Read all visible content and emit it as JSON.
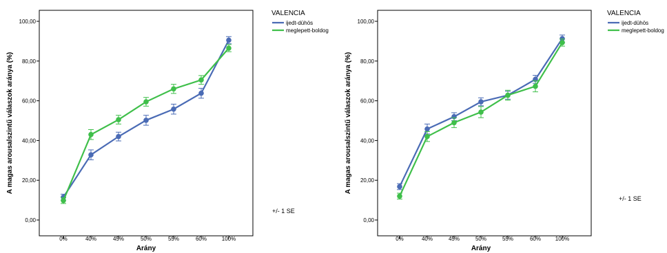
{
  "chart_data": [
    {
      "type": "line",
      "categories": [
        "0%",
        "40%",
        "45%",
        "50%",
        "55%",
        "60%",
        "100%"
      ],
      "ylabel": "A magas arousalszintű válaszok aránya (%)",
      "xlabel": "Arány",
      "ylim": [
        0,
        100
      ],
      "yticks": [
        "0,00",
        "20,00",
        "40,00",
        "60,00",
        "80,00",
        "100,00"
      ],
      "legend_title": "VALENCIA",
      "error_note": "+/- 1 SE",
      "series": [
        {
          "name": "ijedt-dühös",
          "color": "#4a6bb5",
          "values": [
            11.5,
            32.8,
            42.0,
            50.2,
            55.8,
            63.8,
            90.5
          ],
          "se": [
            1.5,
            2.5,
            2.2,
            2.5,
            2.5,
            2.5,
            1.8
          ]
        },
        {
          "name": "meglepett-boldog",
          "color": "#3fbf4a",
          "values": [
            9.8,
            43.0,
            50.5,
            59.5,
            66.0,
            70.5,
            86.5
          ],
          "se": [
            1.5,
            2.5,
            2.2,
            2.2,
            2.3,
            2.2,
            1.8
          ]
        }
      ]
    },
    {
      "type": "line",
      "categories": [
        "0%",
        "40%",
        "45%",
        "50%",
        "55%",
        "60%",
        "100%"
      ],
      "ylabel": "A magas arousalszintű válaszok aránya (%)",
      "xlabel": "Arány",
      "ylim": [
        0,
        100
      ],
      "yticks": [
        "0,00",
        "20,00",
        "40,00",
        "60,00",
        "80,00",
        "100,00"
      ],
      "legend_title": "VALENCIA",
      "error_note": "+/- 1 SE",
      "series": [
        {
          "name": "ijedt-dühös",
          "color": "#4a6bb5",
          "values": [
            16.8,
            45.8,
            52.0,
            59.5,
            62.8,
            70.8,
            91.3
          ],
          "se": [
            1.5,
            2.5,
            2.0,
            2.0,
            2.0,
            2.0,
            1.8
          ]
        },
        {
          "name": "meglepett-boldog",
          "color": "#3fbf4a",
          "values": [
            12.0,
            42.0,
            49.0,
            54.3,
            62.8,
            67.3,
            89.3
          ],
          "se": [
            1.5,
            2.5,
            2.5,
            2.8,
            2.5,
            2.8,
            1.8
          ]
        }
      ]
    }
  ]
}
